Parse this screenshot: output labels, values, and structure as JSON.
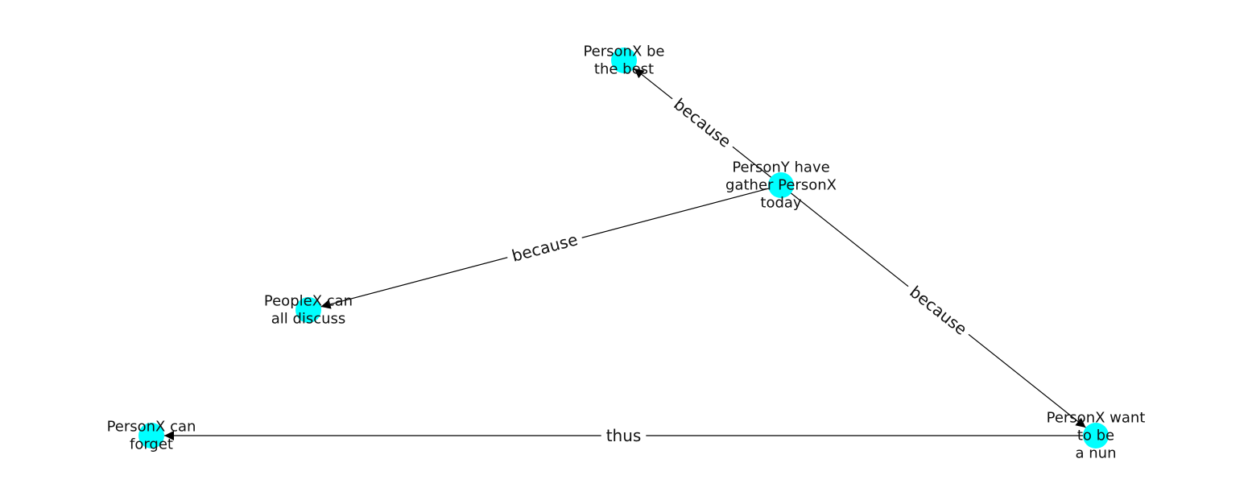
{
  "graph": {
    "node_color": "#00ffff",
    "edge_color": "#000000",
    "nodes": [
      {
        "id": "n1",
        "lines": [
          "PersonX be",
          "the best"
        ]
      },
      {
        "id": "n2",
        "lines": [
          "PersonY have",
          "gather PersonX",
          "today"
        ]
      },
      {
        "id": "n3",
        "lines": [
          "PeopleX can",
          "all discuss"
        ]
      },
      {
        "id": "n4",
        "lines": [
          "PersonX can",
          "forget"
        ]
      },
      {
        "id": "n5",
        "lines": [
          "PersonX want",
          "to be",
          "a nun"
        ]
      }
    ],
    "edges": [
      {
        "from": "n2",
        "to": "n1",
        "label": "because"
      },
      {
        "from": "n2",
        "to": "n3",
        "label": "because"
      },
      {
        "from": "n2",
        "to": "n5",
        "label": "because"
      },
      {
        "from": "n5",
        "to": "n4",
        "label": "thus"
      }
    ]
  }
}
